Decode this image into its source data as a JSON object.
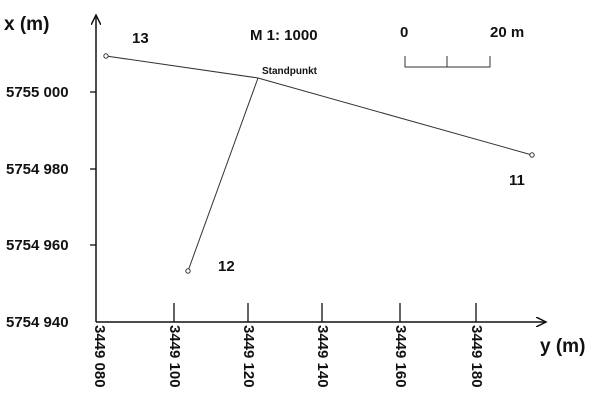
{
  "axes": {
    "x_title": "x (m)",
    "y_title": "y (m)",
    "x_ticks": [
      "5755 000",
      "5754 980",
      "5754 960",
      "5754 940"
    ],
    "y_ticks": [
      "3449 080",
      "3449 100",
      "3449 120",
      "3449 140",
      "3449 160",
      "3449 180"
    ]
  },
  "scale": {
    "ratio": "M 1: 1000",
    "bar_start": "0",
    "bar_end": "20 m"
  },
  "points": [
    {
      "label": "13",
      "y": 3449083,
      "x": 5755009
    },
    {
      "label": "Standpunkt",
      "y": 3449123,
      "x": 5755003
    },
    {
      "label": "11",
      "y": 3449197,
      "x": 5754983
    },
    {
      "label": "12",
      "y": 3449105,
      "x": 5754952
    }
  ]
}
